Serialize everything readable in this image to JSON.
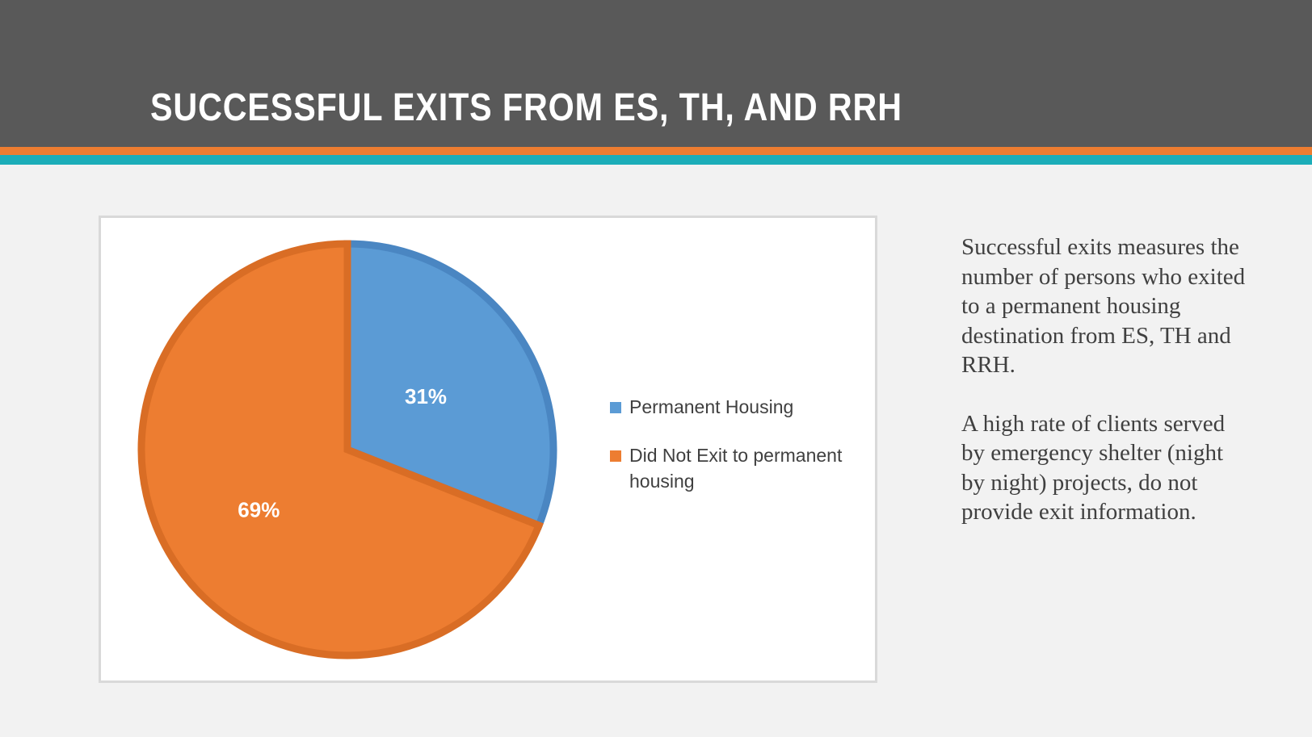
{
  "slide": {
    "title": "SUCCESSFUL EXITS FROM ES, TH, AND RRH",
    "body": {
      "paragraph_1": "Successful exits measures the number of persons who exited to a permanent housing destination from ES, TH and RRH.",
      "paragraph_2": "A high rate of clients served by emergency shelter (night by night) projects, do not provide exit information."
    }
  },
  "colors": {
    "header_bg": "#595959",
    "stripe_orange": "#ed7d31",
    "stripe_teal": "#1cadb8"
  },
  "chart_data": {
    "type": "pie",
    "title": "",
    "categories": [
      "Permanent Housing",
      "Did Not Exit to permanent housing"
    ],
    "values": [
      31,
      69
    ],
    "labels": [
      "31%",
      "69%"
    ],
    "colors": [
      "#5b9bd5",
      "#ed7d31"
    ],
    "border_colors": [
      "#4a86c2",
      "#d96d25"
    ],
    "legend_position": "right",
    "start_angle": "12 o'clock, clockwise"
  }
}
